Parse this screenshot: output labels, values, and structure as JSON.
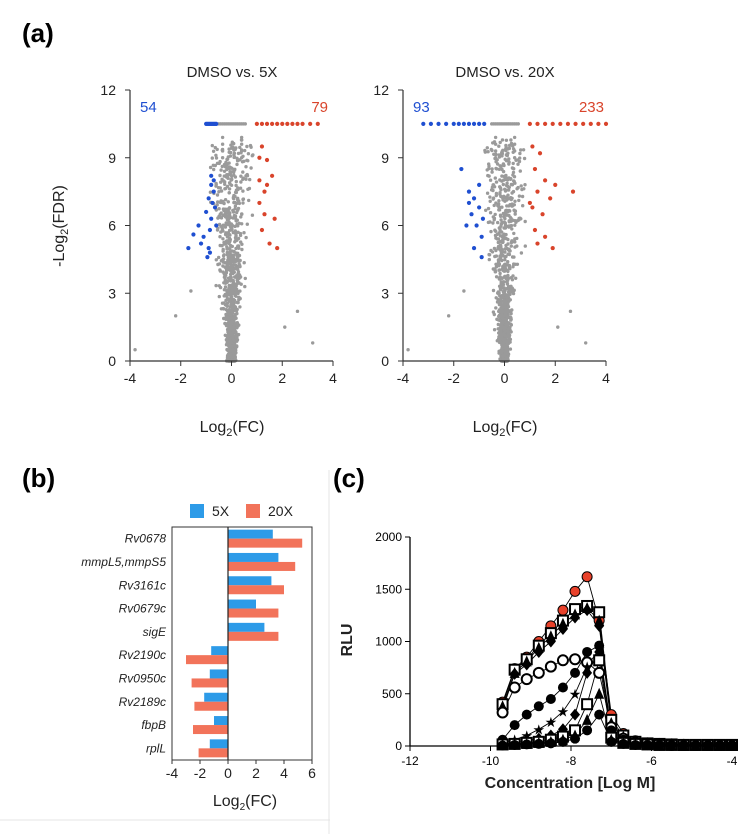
{
  "panel_labels": {
    "a": "(a)",
    "b": "(b)",
    "c": "(c)"
  },
  "colors": {
    "up": "#d9442b",
    "down": "#1f4fd1",
    "ns": "#9a9a9a",
    "bar_5x": "#2d9be8",
    "bar_20x": "#f2735a",
    "red_curve": "#e8412a"
  },
  "chart_data": [
    {
      "type": "scatter",
      "title": "DMSO vs. 5X",
      "xlabel": "Log2(FC)",
      "ylabel": "-Log2(FDR)",
      "xlim": [
        -4,
        4
      ],
      "ylim": [
        0,
        12
      ],
      "xticks": [
        "-4",
        "-2",
        "0",
        "2",
        "4"
      ],
      "yticks": [
        "0",
        "3",
        "6",
        "9",
        "12"
      ],
      "count_down": "54",
      "count_up": "79",
      "down_points": [
        [
          -1.0,
          10.5
        ],
        [
          -0.95,
          10.5
        ],
        [
          -0.9,
          10.5
        ],
        [
          -0.85,
          10.5
        ],
        [
          -0.8,
          10.5
        ],
        [
          -0.75,
          10.5
        ],
        [
          -0.7,
          10.5
        ],
        [
          -0.65,
          10.5
        ],
        [
          -0.6,
          10.5
        ],
        [
          -1.7,
          5.0
        ],
        [
          -1.5,
          5.6
        ],
        [
          -1.3,
          6.0
        ],
        [
          -1.2,
          5.2
        ],
        [
          -1.1,
          5.5
        ],
        [
          -0.95,
          4.6
        ],
        [
          -0.9,
          5.0
        ],
        [
          -0.85,
          5.8
        ],
        [
          -0.8,
          6.3
        ],
        [
          -0.75,
          7.0
        ],
        [
          -0.7,
          7.5
        ],
        [
          -0.7,
          8.0
        ],
        [
          -0.8,
          7.8
        ],
        [
          -0.65,
          6.8
        ],
        [
          -0.6,
          6.0
        ],
        [
          -1.0,
          6.6
        ],
        [
          -0.9,
          7.2
        ],
        [
          -0.8,
          8.2
        ],
        [
          -0.85,
          4.8
        ]
      ],
      "up_points": [
        [
          1.0,
          10.5
        ],
        [
          1.2,
          10.5
        ],
        [
          1.4,
          10.5
        ],
        [
          1.6,
          10.5
        ],
        [
          1.8,
          10.5
        ],
        [
          2.0,
          10.5
        ],
        [
          2.2,
          10.5
        ],
        [
          2.4,
          10.5
        ],
        [
          2.6,
          10.5
        ],
        [
          2.8,
          10.5
        ],
        [
          3.1,
          10.5
        ],
        [
          3.4,
          10.5
        ],
        [
          1.1,
          9.0
        ],
        [
          1.2,
          9.5
        ],
        [
          1.4,
          8.9
        ],
        [
          1.1,
          8.0
        ],
        [
          1.3,
          7.5
        ],
        [
          1.6,
          8.2
        ],
        [
          1.1,
          7.0
        ],
        [
          1.3,
          6.5
        ],
        [
          1.7,
          6.3
        ],
        [
          1.5,
          5.2
        ],
        [
          1.8,
          5.0
        ],
        [
          1.2,
          5.8
        ],
        [
          1.4,
          7.8
        ]
      ],
      "ns_band_value": 10.5
    },
    {
      "type": "scatter",
      "title": "DMSO vs. 20X",
      "xlabel": "Log2(FC)",
      "ylabel": "",
      "xlim": [
        -4,
        4
      ],
      "ylim": [
        0,
        12
      ],
      "xticks": [
        "-4",
        "-2",
        "0",
        "2",
        "4"
      ],
      "yticks": [
        "0",
        "3",
        "6",
        "9",
        "12"
      ],
      "count_down": "93",
      "count_up": "233",
      "down_points": [
        [
          -3.2,
          10.5
        ],
        [
          -2.9,
          10.5
        ],
        [
          -2.6,
          10.5
        ],
        [
          -2.3,
          10.5
        ],
        [
          -2.0,
          10.5
        ],
        [
          -1.8,
          10.5
        ],
        [
          -1.6,
          10.5
        ],
        [
          -1.4,
          10.5
        ],
        [
          -1.2,
          10.5
        ],
        [
          -1.0,
          10.5
        ],
        [
          -0.8,
          10.5
        ],
        [
          -1.7,
          8.5
        ],
        [
          -1.4,
          7.5
        ],
        [
          -1.2,
          7.2
        ],
        [
          -1.3,
          6.5
        ],
        [
          -1.0,
          6.8
        ],
        [
          -1.5,
          6.0
        ],
        [
          -1.1,
          6.0
        ],
        [
          -0.9,
          5.5
        ],
        [
          -1.2,
          5.0
        ],
        [
          -0.9,
          4.6
        ],
        [
          -1.4,
          7.0
        ],
        [
          -1.0,
          7.8
        ],
        [
          -0.85,
          6.3
        ]
      ],
      "up_points": [
        [
          1.0,
          10.5
        ],
        [
          1.3,
          10.5
        ],
        [
          1.6,
          10.5
        ],
        [
          1.9,
          10.5
        ],
        [
          2.2,
          10.5
        ],
        [
          2.5,
          10.5
        ],
        [
          2.8,
          10.5
        ],
        [
          3.1,
          10.5
        ],
        [
          3.4,
          10.5
        ],
        [
          3.7,
          10.5
        ],
        [
          4.0,
          10.5
        ],
        [
          1.1,
          9.5
        ],
        [
          1.4,
          9.2
        ],
        [
          1.2,
          8.5
        ],
        [
          1.6,
          8.0
        ],
        [
          2.0,
          7.8
        ],
        [
          1.3,
          7.5
        ],
        [
          1.8,
          7.2
        ],
        [
          1.1,
          6.8
        ],
        [
          1.5,
          6.5
        ],
        [
          2.7,
          7.5
        ],
        [
          1.2,
          5.8
        ],
        [
          1.6,
          5.5
        ],
        [
          1.9,
          5.0
        ],
        [
          1.3,
          5.2
        ],
        [
          1.0,
          7.0
        ]
      ],
      "ns_band_value": 10.5
    },
    {
      "type": "bar",
      "orientation": "horizontal",
      "categories": [
        "Rv0678",
        "mmpL5,mmpS5",
        "Rv3161c",
        "Rv0679c",
        "sigE",
        "Rv2190c",
        "Rv0950c",
        "Rv2189c",
        "fbpB",
        "rplL"
      ],
      "series": [
        {
          "name": "5X",
          "values": [
            3.2,
            3.6,
            3.1,
            2.0,
            2.6,
            -1.2,
            -1.3,
            -1.7,
            -1.0,
            -1.3
          ]
        },
        {
          "name": "20X",
          "values": [
            5.3,
            4.8,
            4.0,
            3.6,
            3.6,
            -3.0,
            -2.6,
            -2.4,
            -2.5,
            -2.1
          ]
        }
      ],
      "xlabel": "Log2(FC)",
      "xlim": [
        -4,
        6
      ],
      "xticks": [
        "-4",
        "-2",
        "0",
        "2",
        "4",
        "6"
      ],
      "legend": "top"
    },
    {
      "type": "line",
      "xlabel": "Concentration [Log M]",
      "ylabel": "RLU",
      "xlim": [
        -12,
        -4
      ],
      "ylim": [
        0,
        2000
      ],
      "xticks": [
        "-12",
        "-10",
        "-8",
        "-6",
        "-4"
      ],
      "yticks": [
        "0",
        "500",
        "1000",
        "1500",
        "2000"
      ],
      "x": [
        -9.7,
        -9.4,
        -9.1,
        -8.8,
        -8.5,
        -8.2,
        -7.9,
        -7.6,
        -7.3,
        -7.0,
        -6.7,
        -6.4,
        -6.1,
        -5.8,
        -5.5,
        -5.2,
        -4.9,
        -4.6,
        -4.3,
        -4.0
      ],
      "series": [
        {
          "marker": "circle-red",
          "values": [
            420,
            740,
            850,
            1000,
            1150,
            1300,
            1480,
            1620,
            1200,
            300,
            120,
            50,
            30,
            20,
            20,
            15,
            10,
            10,
            10,
            10
          ]
        },
        {
          "marker": "square",
          "values": [
            400,
            730,
            830,
            960,
            1080,
            1200,
            1310,
            1340,
            1280,
            250,
            100,
            40,
            25,
            20,
            15,
            10,
            10,
            10,
            10,
            10
          ]
        },
        {
          "marker": "triangle",
          "values": [
            380,
            700,
            810,
            940,
            1050,
            1170,
            1260,
            1320,
            1200,
            220,
            90,
            40,
            25,
            20,
            15,
            10,
            10,
            10,
            10,
            10
          ]
        },
        {
          "marker": "diamond",
          "values": [
            350,
            690,
            780,
            900,
            1000,
            1120,
            1230,
            1300,
            1150,
            200,
            80,
            35,
            25,
            20,
            15,
            10,
            10,
            10,
            10,
            10
          ]
        },
        {
          "marker": "circle-open",
          "values": [
            320,
            560,
            640,
            700,
            760,
            820,
            830,
            800,
            700,
            180,
            70,
            30,
            20,
            15,
            10,
            10,
            10,
            10,
            10,
            10
          ]
        },
        {
          "marker": "circle",
          "values": [
            60,
            200,
            300,
            380,
            450,
            560,
            700,
            900,
            960,
            150,
            60,
            30,
            20,
            15,
            10,
            10,
            10,
            10,
            10,
            10
          ]
        },
        {
          "marker": "star",
          "values": [
            30,
            60,
            100,
            160,
            230,
            330,
            500,
            760,
            930,
            120,
            50,
            25,
            15,
            10,
            10,
            10,
            10,
            10,
            10,
            10
          ]
        },
        {
          "marker": "diamond",
          "values": [
            20,
            30,
            50,
            70,
            100,
            160,
            300,
            700,
            900,
            100,
            40,
            20,
            15,
            10,
            10,
            10,
            10,
            10,
            10,
            10
          ]
        },
        {
          "marker": "square",
          "values": [
            15,
            20,
            30,
            40,
            60,
            90,
            150,
            400,
            820,
            80,
            30,
            20,
            15,
            10,
            10,
            10,
            10,
            10,
            10,
            10
          ]
        },
        {
          "marker": "triangle",
          "values": [
            10,
            15,
            20,
            30,
            40,
            60,
            100,
            250,
            500,
            60,
            25,
            15,
            10,
            10,
            10,
            10,
            10,
            10,
            10,
            10
          ]
        },
        {
          "marker": "circle",
          "values": [
            5,
            10,
            15,
            20,
            25,
            40,
            70,
            150,
            300,
            40,
            20,
            10,
            10,
            10,
            10,
            10,
            10,
            10,
            10,
            10
          ]
        }
      ]
    }
  ]
}
